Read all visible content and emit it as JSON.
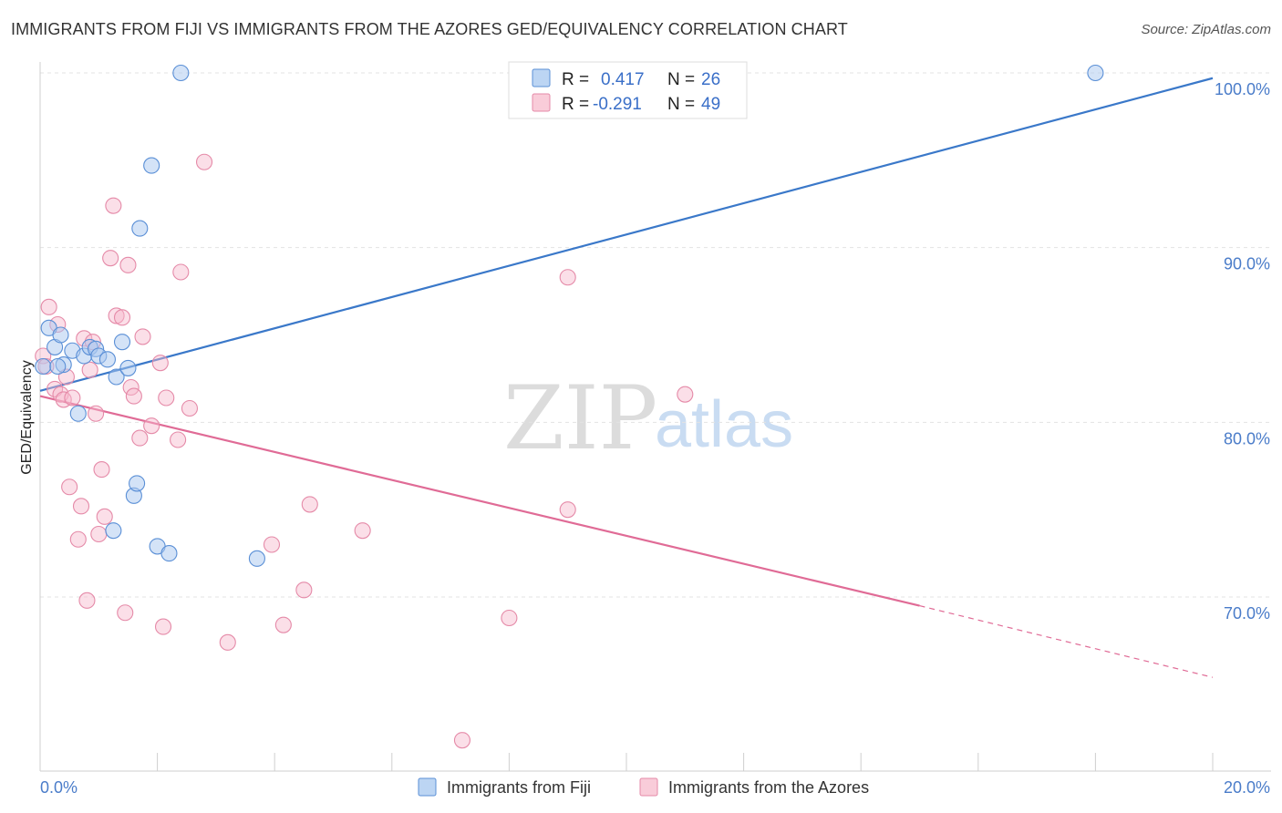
{
  "title": "IMMIGRANTS FROM FIJI VS IMMIGRANTS FROM THE AZORES GED/EQUIVALENCY CORRELATION CHART",
  "source": "Source: ZipAtlas.com",
  "watermark": {
    "zip": "ZIP",
    "atlas": "atlas"
  },
  "colors": {
    "fiji_fill": "#a9c8ef",
    "fiji_stroke": "#5a8fd6",
    "fiji_line": "#3a78c9",
    "azores_fill": "#f6b9cc",
    "azores_stroke": "#e58aa8",
    "azores_line": "#e06b96",
    "tick_label": "#4a7cc9",
    "grid": "#e3e3e3"
  },
  "legend": {
    "row1": {
      "r_label": "R =",
      "r_value": "0.417",
      "n_label": "N =",
      "n_value": "26"
    },
    "row2": {
      "r_label": "R =",
      "r_value": "-0.291",
      "n_label": "N =",
      "n_value": "49"
    }
  },
  "chart_data": {
    "type": "scatter",
    "title": "IMMIGRANTS FROM FIJI VS IMMIGRANTS FROM THE AZORES GED/EQUIVALENCY CORRELATION CHART",
    "xlabel": "",
    "ylabel": "GED/Equivalency",
    "xlim": [
      0,
      20
    ],
    "ylim": [
      61,
      101.5
    ],
    "x_tick_labels": [
      "0.0%",
      "20.0%"
    ],
    "y_ticks": [
      70,
      80,
      90,
      100
    ],
    "y_tick_labels": [
      "70.0%",
      "80.0%",
      "90.0%",
      "100.0%"
    ],
    "grid": true,
    "legend_position": "bottom",
    "series": [
      {
        "name": "Immigrants from Fiji",
        "r": 0.417,
        "n": 26,
        "points": [
          [
            0.05,
            83.2
          ],
          [
            0.15,
            85.4
          ],
          [
            0.25,
            84.3
          ],
          [
            0.35,
            85.0
          ],
          [
            0.4,
            83.3
          ],
          [
            0.55,
            84.1
          ],
          [
            0.65,
            80.5
          ],
          [
            0.75,
            83.8
          ],
          [
            0.85,
            84.3
          ],
          [
            0.95,
            84.2
          ],
          [
            1.0,
            83.8
          ],
          [
            1.15,
            83.6
          ],
          [
            1.3,
            82.6
          ],
          [
            1.4,
            84.6
          ],
          [
            1.5,
            83.1
          ],
          [
            1.6,
            75.8
          ],
          [
            1.65,
            76.5
          ],
          [
            1.7,
            91.1
          ],
          [
            1.9,
            94.7
          ],
          [
            2.0,
            72.9
          ],
          [
            2.2,
            72.5
          ],
          [
            2.4,
            100.0
          ],
          [
            1.25,
            73.8
          ],
          [
            3.7,
            72.2
          ],
          [
            18.0,
            100.0
          ],
          [
            0.3,
            83.2
          ]
        ],
        "trend": {
          "x0": 0.0,
          "y0": 81.8,
          "x1": 20.0,
          "y1": 99.7
        }
      },
      {
        "name": "Immigrants from the Azores",
        "r": -0.291,
        "n": 49,
        "points": [
          [
            0.05,
            83.8
          ],
          [
            0.1,
            83.2
          ],
          [
            0.15,
            86.6
          ],
          [
            0.25,
            81.9
          ],
          [
            0.3,
            85.6
          ],
          [
            0.35,
            81.6
          ],
          [
            0.4,
            81.3
          ],
          [
            0.45,
            82.6
          ],
          [
            0.5,
            76.3
          ],
          [
            0.55,
            81.4
          ],
          [
            0.65,
            73.3
          ],
          [
            0.7,
            75.2
          ],
          [
            0.75,
            84.8
          ],
          [
            0.8,
            69.8
          ],
          [
            0.85,
            83.0
          ],
          [
            0.9,
            84.6
          ],
          [
            0.95,
            80.5
          ],
          [
            1.0,
            73.6
          ],
          [
            1.05,
            77.3
          ],
          [
            1.1,
            74.6
          ],
          [
            1.2,
            89.4
          ],
          [
            1.25,
            92.4
          ],
          [
            1.3,
            86.1
          ],
          [
            1.4,
            86.0
          ],
          [
            1.45,
            69.1
          ],
          [
            1.5,
            89.0
          ],
          [
            1.55,
            82.0
          ],
          [
            1.6,
            81.5
          ],
          [
            1.7,
            79.1
          ],
          [
            1.75,
            84.9
          ],
          [
            1.9,
            79.8
          ],
          [
            2.05,
            83.4
          ],
          [
            2.1,
            68.3
          ],
          [
            2.15,
            81.4
          ],
          [
            2.35,
            79.0
          ],
          [
            2.4,
            88.6
          ],
          [
            2.55,
            80.8
          ],
          [
            2.8,
            94.9
          ],
          [
            3.2,
            67.4
          ],
          [
            3.95,
            73.0
          ],
          [
            4.15,
            68.4
          ],
          [
            4.5,
            70.4
          ],
          [
            4.6,
            75.3
          ],
          [
            5.5,
            73.8
          ],
          [
            7.2,
            61.8
          ],
          [
            8.0,
            68.8
          ],
          [
            9.0,
            75.0
          ],
          [
            9.0,
            88.3
          ],
          [
            11.0,
            81.6
          ]
        ],
        "trend": {
          "x0": 0.0,
          "y0": 81.5,
          "x1": 15.0,
          "y1": 69.5,
          "dash_x1": 20.0,
          "dash_y1": 65.4
        }
      }
    ]
  },
  "bottom_legend": {
    "fiji": "Immigrants from Fiji",
    "azores": "Immigrants from the Azores"
  }
}
